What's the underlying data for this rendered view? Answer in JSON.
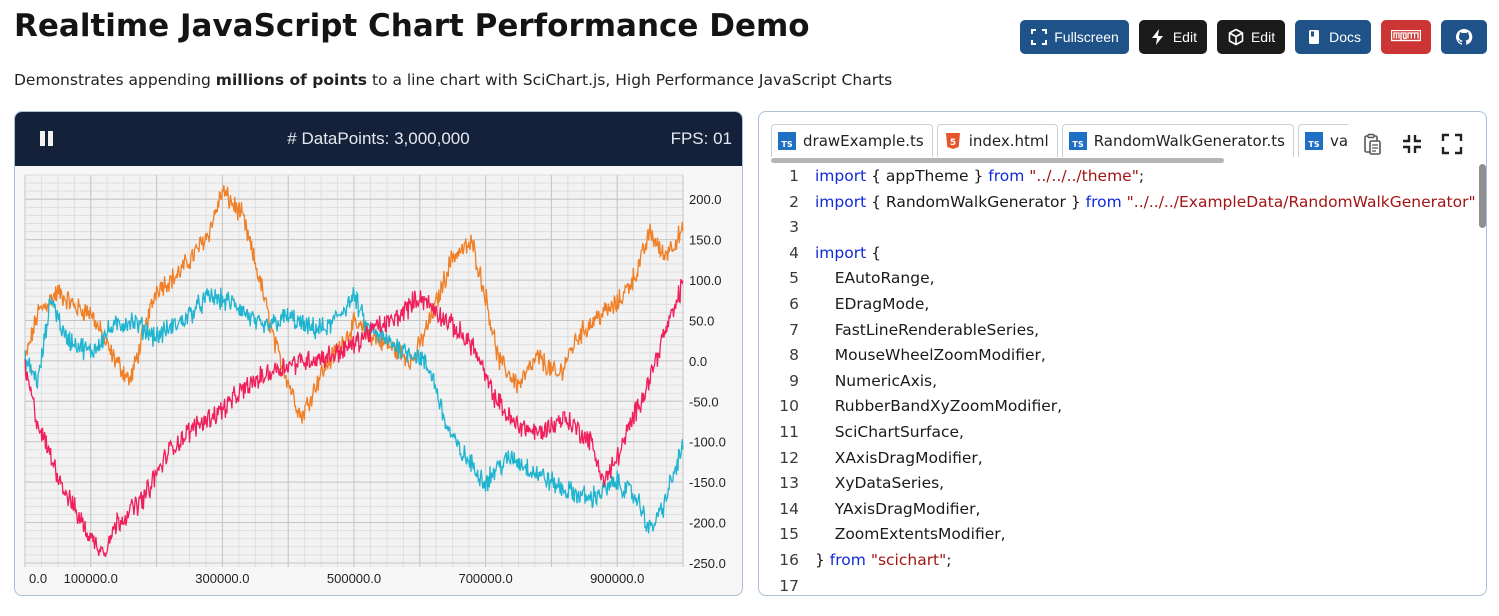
{
  "page": {
    "title": "Realtime JavaScript Chart Performance Demo",
    "subtitle_before": "Demonstrates appending ",
    "subtitle_bold": "millions of points",
    "subtitle_after": " to a line chart with SciChart.js, High Performance JavaScript Charts"
  },
  "toolbar": {
    "fullscreen_label": "Fullscreen",
    "edit_label_1": "Edit",
    "edit_label_2": "Edit",
    "docs_label": "Docs",
    "colors": {
      "blue": "#1e5288",
      "dark": "#1b1b1b",
      "npm": "#cc3534"
    }
  },
  "chart_panel": {
    "datapoints_label": "# DataPoints: 3,000,000",
    "fps_label": "FPS: 01"
  },
  "chart_data": {
    "type": "line",
    "title": "",
    "x_tick_labels": [
      "0.0",
      "100000.0",
      "300000.0",
      "500000.0",
      "700000.0",
      "900000.0"
    ],
    "x_ticks": [
      0,
      100000,
      300000,
      500000,
      700000,
      900000
    ],
    "y_tick_labels": [
      "200.0",
      "150.0",
      "100.0",
      "50.0",
      "0.0",
      "-50.0",
      "-100.0",
      "-150.0",
      "-200.0",
      "-250.0"
    ],
    "y_ticks": [
      200,
      150,
      100,
      50,
      0,
      -50,
      -100,
      -150,
      -200,
      -250
    ],
    "xlim": [
      0,
      1000000
    ],
    "ylim": [
      -255,
      230
    ],
    "grid": true,
    "series": [
      {
        "color": "#f07f26",
        "x": [
          0,
          20000,
          50000,
          80000,
          100000,
          130000,
          160000,
          200000,
          230000,
          260000,
          280000,
          300000,
          330000,
          360000,
          380000,
          400000,
          420000,
          450000,
          480000,
          500000,
          530000,
          560000,
          590000,
          620000,
          650000,
          680000,
          700000,
          720000,
          750000,
          780000,
          810000,
          840000,
          870000,
          900000,
          930000,
          950000,
          970000,
          990000,
          1000000
        ],
        "y": [
          0,
          60,
          85,
          65,
          60,
          10,
          -25,
          90,
          105,
          135,
          160,
          210,
          180,
          90,
          20,
          -25,
          -70,
          -15,
          20,
          45,
          30,
          15,
          0,
          60,
          130,
          145,
          80,
          0,
          -30,
          5,
          -20,
          30,
          55,
          70,
          110,
          160,
          130,
          150,
          160
        ]
      },
      {
        "color": "#1fb4d0",
        "x": [
          0,
          20000,
          40000,
          60000,
          100000,
          130000,
          160000,
          200000,
          240000,
          280000,
          320000,
          360000,
          400000,
          430000,
          460000,
          500000,
          520000,
          560000,
          600000,
          620000,
          640000,
          660000,
          700000,
          720000,
          740000,
          780000,
          820000,
          860000,
          900000,
          930000,
          950000,
          970000,
          990000,
          1000000
        ],
        "y": [
          0,
          -25,
          80,
          30,
          10,
          40,
          50,
          30,
          50,
          80,
          70,
          40,
          55,
          40,
          40,
          80,
          40,
          20,
          5,
          -20,
          -80,
          -110,
          -150,
          -130,
          -120,
          -140,
          -160,
          -170,
          -150,
          -170,
          -210,
          -180,
          -130,
          -105
        ]
      },
      {
        "color": "#f01e5a",
        "x": [
          0,
          20000,
          40000,
          60000,
          80000,
          100000,
          120000,
          140000,
          180000,
          220000,
          260000,
          300000,
          340000,
          380000,
          420000,
          460000,
          500000,
          530000,
          560000,
          600000,
          640000,
          680000,
          710000,
          740000,
          780000,
          820000,
          860000,
          880000,
          900000,
          930000,
          950000,
          970000,
          990000,
          1000000
        ],
        "y": [
          -10,
          -80,
          -120,
          -160,
          -190,
          -220,
          -235,
          -200,
          -170,
          -110,
          -80,
          -60,
          -30,
          -10,
          0,
          5,
          20,
          40,
          50,
          80,
          50,
          20,
          -40,
          -75,
          -90,
          -70,
          -100,
          -150,
          -120,
          -60,
          -20,
          30,
          70,
          100
        ]
      }
    ]
  },
  "code_panel": {
    "tabs": [
      {
        "label": "drawExample.ts",
        "icon": "typescript-icon"
      },
      {
        "label": "index.html",
        "icon": "html5-icon"
      },
      {
        "label": "RandomWalkGenerator.ts",
        "icon": "typescript-icon"
      },
      {
        "label": "vars.ts",
        "icon": "typescript-icon"
      }
    ],
    "lines": [
      {
        "num": "1",
        "tokens": [
          {
            "t": "import",
            "c": "kw"
          },
          {
            "t": " { appTheme } "
          },
          {
            "t": "from",
            "c": "kw"
          },
          {
            "t": " "
          },
          {
            "t": "\"../../../theme\"",
            "c": "str"
          },
          {
            "t": ";"
          }
        ]
      },
      {
        "num": "2",
        "tokens": [
          {
            "t": "import",
            "c": "kw"
          },
          {
            "t": " { RandomWalkGenerator } "
          },
          {
            "t": "from",
            "c": "kw"
          },
          {
            "t": " "
          },
          {
            "t": "\"../../../ExampleData/RandomWalkGenerator\"",
            "c": "str"
          },
          {
            "t": ";"
          }
        ]
      },
      {
        "num": "3",
        "tokens": []
      },
      {
        "num": "4",
        "tokens": [
          {
            "t": "import",
            "c": "kw"
          },
          {
            "t": " {"
          }
        ]
      },
      {
        "num": "5",
        "tokens": [
          {
            "t": "    EAutoRange,"
          }
        ]
      },
      {
        "num": "6",
        "tokens": [
          {
            "t": "    EDragMode,"
          }
        ]
      },
      {
        "num": "7",
        "tokens": [
          {
            "t": "    FastLineRenderableSeries,"
          }
        ]
      },
      {
        "num": "8",
        "tokens": [
          {
            "t": "    MouseWheelZoomModifier,"
          }
        ]
      },
      {
        "num": "9",
        "tokens": [
          {
            "t": "    NumericAxis,"
          }
        ]
      },
      {
        "num": "10",
        "tokens": [
          {
            "t": "    RubberBandXyZoomModifier,"
          }
        ]
      },
      {
        "num": "11",
        "tokens": [
          {
            "t": "    SciChartSurface,"
          }
        ]
      },
      {
        "num": "12",
        "tokens": [
          {
            "t": "    XAxisDragModifier,"
          }
        ]
      },
      {
        "num": "13",
        "tokens": [
          {
            "t": "    XyDataSeries,"
          }
        ]
      },
      {
        "num": "14",
        "tokens": [
          {
            "t": "    YAxisDragModifier,"
          }
        ]
      },
      {
        "num": "15",
        "tokens": [
          {
            "t": "    ZoomExtentsModifier,"
          }
        ]
      },
      {
        "num": "16",
        "tokens": [
          {
            "t": "} "
          },
          {
            "t": "from",
            "c": "kw"
          },
          {
            "t": " "
          },
          {
            "t": "\"scichart\"",
            "c": "str"
          },
          {
            "t": ";"
          }
        ]
      },
      {
        "num": "17",
        "tokens": []
      }
    ]
  }
}
